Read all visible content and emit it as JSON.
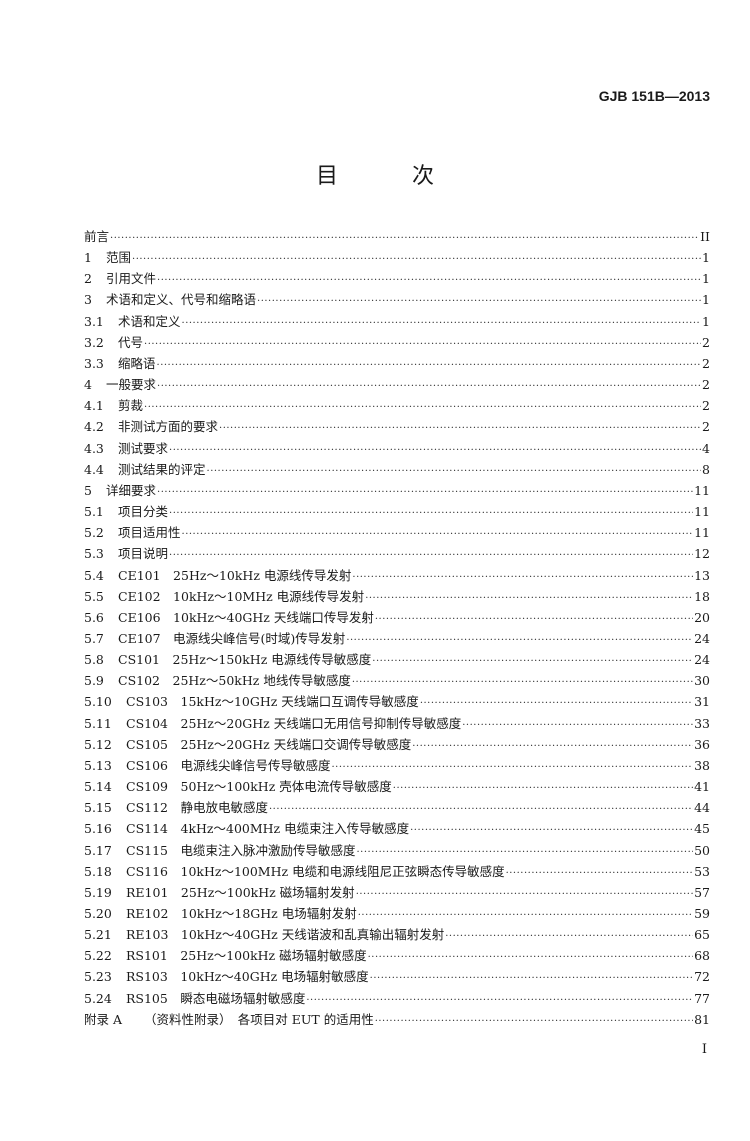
{
  "header": {
    "doc_code": "GJB 151B—2013"
  },
  "title": "目　次",
  "toc": [
    {
      "num": "",
      "label": "前言",
      "page": "II"
    },
    {
      "num": "1",
      "label": "范围",
      "page": "1"
    },
    {
      "num": "2",
      "label": "引用文件",
      "page": "1"
    },
    {
      "num": "3",
      "label": "术语和定义、代号和缩略语",
      "page": "1"
    },
    {
      "num": "3.1",
      "label": "术语和定义",
      "page": "1"
    },
    {
      "num": "3.2",
      "label": "代号",
      "page": "2"
    },
    {
      "num": "3.3",
      "label": "缩略语",
      "page": "2"
    },
    {
      "num": "4",
      "label": "一般要求",
      "page": "2"
    },
    {
      "num": "4.1",
      "label": "剪裁",
      "page": "2"
    },
    {
      "num": "4.2",
      "label": "非测试方面的要求",
      "page": "2"
    },
    {
      "num": "4.3",
      "label": "测试要求",
      "page": "4"
    },
    {
      "num": "4.4",
      "label": "测试结果的评定",
      "page": "8"
    },
    {
      "num": "5",
      "label": "详细要求",
      "page": "11"
    },
    {
      "num": "5.1",
      "label": "项目分类",
      "page": "11"
    },
    {
      "num": "5.2",
      "label": "项目适用性",
      "page": "11"
    },
    {
      "num": "5.3",
      "label": "项目说明",
      "page": "12"
    },
    {
      "num": "5.4",
      "label": "CE101　25Hz～10kHz 电源线传导发射",
      "page": "13"
    },
    {
      "num": "5.5",
      "label": "CE102　10kHz～10MHz 电源线传导发射",
      "page": "18"
    },
    {
      "num": "5.6",
      "label": "CE106　10kHz～40GHz 天线端口传导发射",
      "page": "20"
    },
    {
      "num": "5.7",
      "label": "CE107　电源线尖峰信号(时域)传导发射",
      "page": "24"
    },
    {
      "num": "5.8",
      "label": "CS101　25Hz～150kHz 电源线传导敏感度",
      "page": "24"
    },
    {
      "num": "5.9",
      "label": "CS102　25Hz～50kHz 地线传导敏感度",
      "page": "30"
    },
    {
      "num": "5.10",
      "label": "CS103　15kHz～10GHz 天线端口互调传导敏感度",
      "page": "31"
    },
    {
      "num": "5.11",
      "label": "CS104　25Hz～20GHz 天线端口无用信号抑制传导敏感度",
      "page": "33"
    },
    {
      "num": "5.12",
      "label": "CS105　25Hz～20GHz 天线端口交调传导敏感度",
      "page": "36"
    },
    {
      "num": "5.13",
      "label": "CS106　电源线尖峰信号传导敏感度",
      "page": "38"
    },
    {
      "num": "5.14",
      "label": "CS109　50Hz～100kHz 壳体电流传导敏感度",
      "page": "41"
    },
    {
      "num": "5.15",
      "label": "CS112　静电放电敏感度",
      "page": "44"
    },
    {
      "num": "5.16",
      "label": "CS114　4kHz～400MHz 电缆束注入传导敏感度",
      "page": "45"
    },
    {
      "num": "5.17",
      "label": "CS115　电缆束注入脉冲激励传导敏感度",
      "page": "50"
    },
    {
      "num": "5.18",
      "label": "CS116　10kHz～100MHz 电缆和电源线阻尼正弦瞬态传导敏感度",
      "page": "53"
    },
    {
      "num": "5.19",
      "label": "RE101　25Hz～100kHz 磁场辐射发射",
      "page": "57"
    },
    {
      "num": "5.20",
      "label": "RE102　10kHz～18GHz 电场辐射发射",
      "page": "59"
    },
    {
      "num": "5.21",
      "label": "RE103　10kHz～40GHz 天线谐波和乱真输出辐射发射",
      "page": "65"
    },
    {
      "num": "5.22",
      "label": "RS101　25Hz～100kHz 磁场辐射敏感度",
      "page": "68"
    },
    {
      "num": "5.23",
      "label": "RS103　10kHz～40GHz 电场辐射敏感度",
      "page": "72"
    },
    {
      "num": "5.24",
      "label": "RS105　瞬态电磁场辐射敏感度",
      "page": "77"
    },
    {
      "num": "附录 A",
      "label": "（资料性附录）　各项目对 EUT 的适用性",
      "page": "81"
    }
  ],
  "footer": {
    "page_number": "I"
  }
}
